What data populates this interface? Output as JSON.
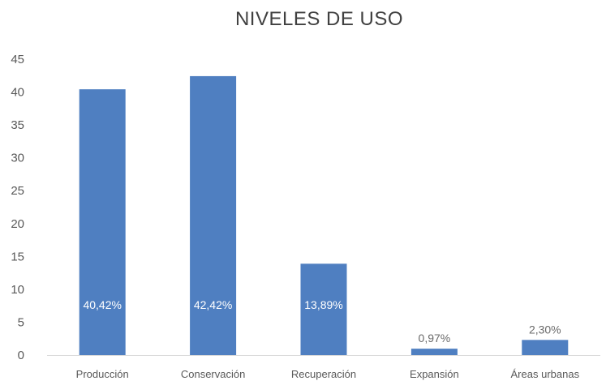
{
  "chart_data": {
    "type": "bar",
    "title": "NIVELES DE USO",
    "categories": [
      "Producción",
      "Conservación",
      "Recuperación",
      "Expansión",
      "Áreas urbanas"
    ],
    "values": [
      40.42,
      42.42,
      13.89,
      0.97,
      2.3
    ],
    "data_labels": [
      "40,42%",
      "42,42%",
      "13,89%",
      "0,97%",
      "2,30%"
    ],
    "ylim": [
      0,
      45
    ],
    "yticks": [
      0,
      5,
      10,
      15,
      20,
      25,
      30,
      35,
      40,
      45
    ],
    "grid": false,
    "legend": "none",
    "bar_color": "#4f7fc1",
    "label_inside_color": "#ffffff",
    "label_outside_color": "#6a6a6a",
    "axis_text_color": "#595959"
  }
}
